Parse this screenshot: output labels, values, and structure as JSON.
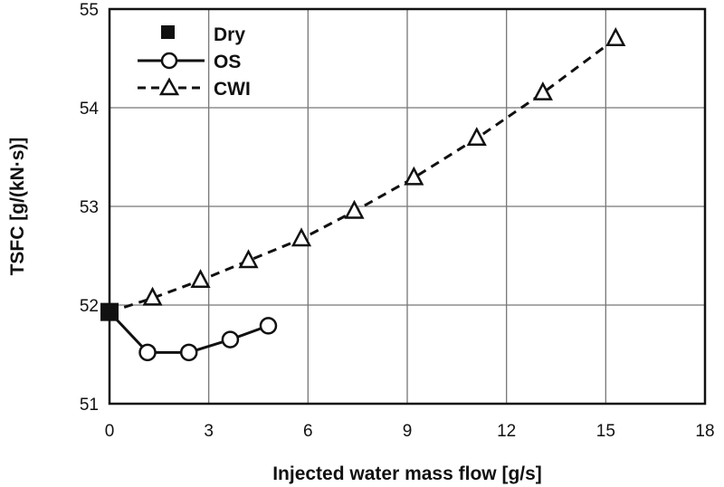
{
  "chart_data": {
    "type": "line",
    "xlabel": "Injected water mass flow [g/s]",
    "ylabel": "TSFC [g/(kN·s)]",
    "xlim": [
      0,
      18
    ],
    "ylim": [
      51,
      55
    ],
    "xticks": [
      0,
      3,
      6,
      9,
      12,
      15,
      18
    ],
    "yticks": [
      51,
      52,
      53,
      54,
      55
    ],
    "grid": true,
    "legend_position": "top-left",
    "series": [
      {
        "name": "Dry",
        "style": "filled-square",
        "color": "#111111",
        "x": [
          0
        ],
        "y": [
          51.93
        ]
      },
      {
        "name": "OS",
        "style": "solid-line-circle",
        "color": "#111111",
        "x": [
          1.15,
          2.4,
          3.65,
          4.8
        ],
        "y": [
          51.52,
          51.52,
          51.65,
          51.79
        ]
      },
      {
        "name": "CWI",
        "style": "dashed-line-triangle",
        "color": "#111111",
        "x": [
          1.3,
          2.75,
          4.2,
          5.8,
          7.4,
          9.2,
          11.1,
          13.1,
          15.3
        ],
        "y": [
          52.07,
          52.25,
          52.45,
          52.67,
          52.95,
          53.29,
          53.69,
          54.15,
          54.7
        ]
      }
    ]
  }
}
